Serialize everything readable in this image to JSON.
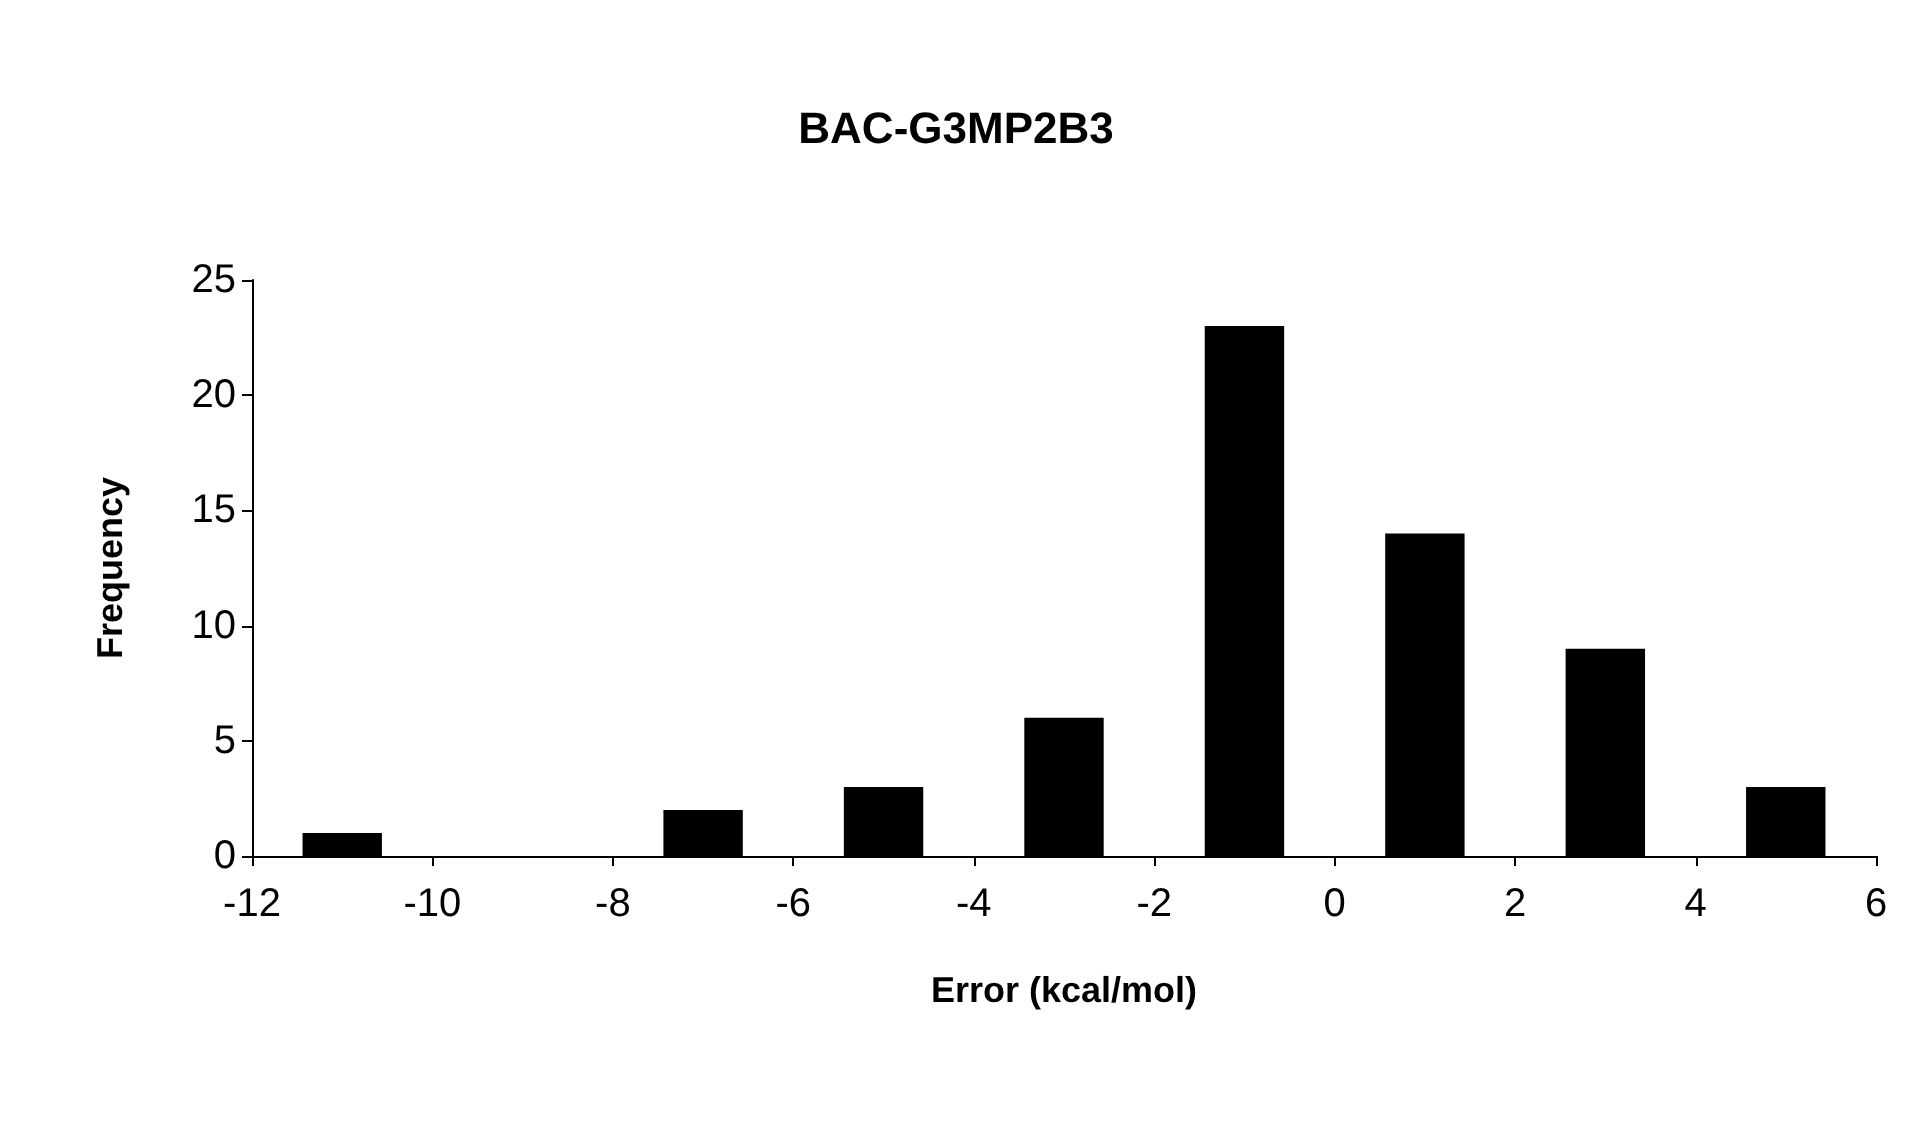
{
  "chart_data": {
    "type": "histogram",
    "title": "BAC-G3MP2B3",
    "xlabel": "Error (kcal/mol)",
    "ylabel": "Frequency",
    "bins": [
      -12,
      -10,
      -8,
      -6,
      -4,
      -2,
      0,
      2,
      4,
      6
    ],
    "values": [
      1,
      0,
      2,
      3,
      6,
      23,
      14,
      9,
      3
    ],
    "color": "#000000",
    "xlim": [
      -12,
      6
    ],
    "xticks": [
      -12,
      -10,
      -8,
      -6,
      -4,
      -2,
      0,
      2,
      4,
      6
    ],
    "ylim": [
      0,
      25
    ],
    "yticks": [
      0,
      5,
      10,
      15,
      20,
      25
    ],
    "grid": false
  }
}
